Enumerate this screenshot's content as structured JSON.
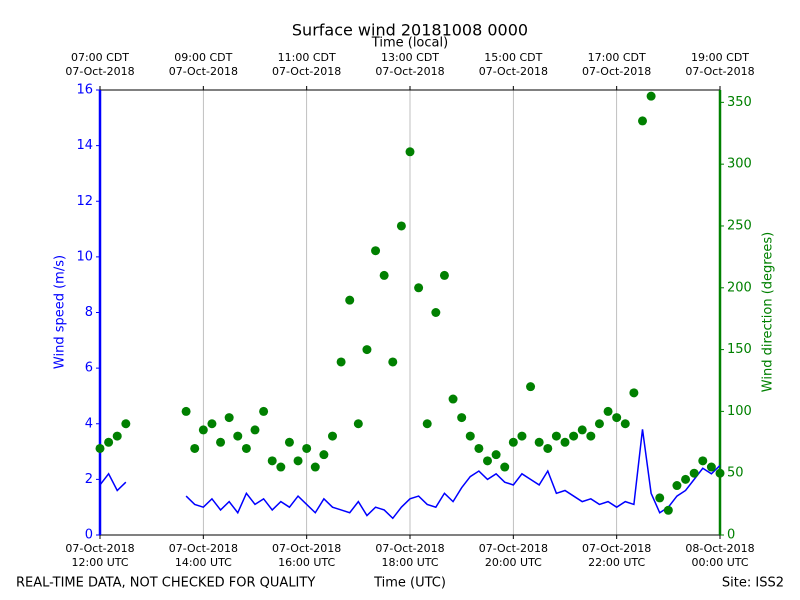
{
  "chart_data": {
    "type": "line_scatter",
    "title": "Surface wind 20181008 0000",
    "x_label": "Time (UTC)",
    "top_x_label": "Time (local)",
    "y_label": "Wind speed (m/s)",
    "y2_label": "Wind direction (degrees)",
    "footer_left": "REAL-TIME DATA, NOT CHECKED FOR QUALITY",
    "footer_right": "Site: ISS2",
    "xlim": [
      "2018-10-07T12:00",
      "2018-10-08T00:00"
    ],
    "xticks": [
      {
        "value": "2018-10-07T12:00",
        "label": "07-Oct-2018\n12:00 UTC"
      },
      {
        "value": "2018-10-07T14:00",
        "label": "07-Oct-2018\n14:00 UTC"
      },
      {
        "value": "2018-10-07T16:00",
        "label": "07-Oct-2018\n16:00 UTC"
      },
      {
        "value": "2018-10-07T18:00",
        "label": "07-Oct-2018\n18:00 UTC"
      },
      {
        "value": "2018-10-07T20:00",
        "label": "07-Oct-2018\n20:00 UTC"
      },
      {
        "value": "2018-10-07T22:00",
        "label": "07-Oct-2018\n22:00 UTC"
      },
      {
        "value": "2018-10-08T00:00",
        "label": "08-Oct-2018\n00:00 UTC"
      }
    ],
    "top_xticks": [
      {
        "value": "2018-10-07T12:00",
        "label": "07:00 CDT\n07-Oct-2018"
      },
      {
        "value": "2018-10-07T14:00",
        "label": "09:00 CDT\n07-Oct-2018"
      },
      {
        "value": "2018-10-07T16:00",
        "label": "11:00 CDT\n07-Oct-2018"
      },
      {
        "value": "2018-10-07T18:00",
        "label": "13:00 CDT\n07-Oct-2018"
      },
      {
        "value": "2018-10-07T20:00",
        "label": "15:00 CDT\n07-Oct-2018"
      },
      {
        "value": "2018-10-07T22:00",
        "label": "17:00 CDT\n07-Oct-2018"
      },
      {
        "value": "2018-10-08T00:00",
        "label": "19:00 CDT\n07-Oct-2018"
      }
    ],
    "ylim": [
      0,
      16
    ],
    "yticks": [
      0,
      2,
      4,
      6,
      8,
      10,
      12,
      14,
      16
    ],
    "y2lim": [
      0,
      360
    ],
    "y2ticks": [
      0,
      50,
      100,
      150,
      200,
      250,
      300,
      350
    ],
    "grid": "x",
    "x": [
      "2018-10-07T12:00",
      "2018-10-07T12:10",
      "2018-10-07T12:20",
      "2018-10-07T12:30",
      "2018-10-07T12:40",
      "2018-10-07T12:50",
      "2018-10-07T13:00",
      "2018-10-07T13:10",
      "2018-10-07T13:20",
      "2018-10-07T13:30",
      "2018-10-07T13:40",
      "2018-10-07T13:50",
      "2018-10-07T14:00",
      "2018-10-07T14:10",
      "2018-10-07T14:20",
      "2018-10-07T14:30",
      "2018-10-07T14:40",
      "2018-10-07T14:50",
      "2018-10-07T15:00",
      "2018-10-07T15:10",
      "2018-10-07T15:20",
      "2018-10-07T15:30",
      "2018-10-07T15:40",
      "2018-10-07T15:50",
      "2018-10-07T16:00",
      "2018-10-07T16:10",
      "2018-10-07T16:20",
      "2018-10-07T16:30",
      "2018-10-07T16:40",
      "2018-10-07T16:50",
      "2018-10-07T17:00",
      "2018-10-07T17:10",
      "2018-10-07T17:20",
      "2018-10-07T17:30",
      "2018-10-07T17:40",
      "2018-10-07T17:50",
      "2018-10-07T18:00",
      "2018-10-07T18:10",
      "2018-10-07T18:20",
      "2018-10-07T18:30",
      "2018-10-07T18:40",
      "2018-10-07T18:50",
      "2018-10-07T19:00",
      "2018-10-07T19:10",
      "2018-10-07T19:20",
      "2018-10-07T19:30",
      "2018-10-07T19:40",
      "2018-10-07T19:50",
      "2018-10-07T20:00",
      "2018-10-07T20:10",
      "2018-10-07T20:20",
      "2018-10-07T20:30",
      "2018-10-07T20:40",
      "2018-10-07T20:50",
      "2018-10-07T21:00",
      "2018-10-07T21:10",
      "2018-10-07T21:20",
      "2018-10-07T21:30",
      "2018-10-07T21:40",
      "2018-10-07T21:50",
      "2018-10-07T22:00",
      "2018-10-07T22:10",
      "2018-10-07T22:20",
      "2018-10-07T22:30",
      "2018-10-07T22:40",
      "2018-10-07T22:50",
      "2018-10-07T23:00",
      "2018-10-07T23:10",
      "2018-10-07T23:20",
      "2018-10-07T23:30",
      "2018-10-07T23:40",
      "2018-10-07T23:50",
      "2018-10-08T00:00"
    ],
    "series": [
      {
        "name": "Wind speed",
        "color": "#0000ff",
        "kind": "line",
        "values": [
          1.8,
          2.2,
          1.6,
          1.9,
          null,
          null,
          null,
          null,
          null,
          null,
          1.4,
          1.1,
          1.0,
          1.3,
          0.9,
          1.2,
          0.8,
          1.5,
          1.1,
          1.3,
          0.9,
          1.2,
          1.0,
          1.4,
          1.1,
          0.8,
          1.3,
          1.0,
          0.9,
          0.8,
          1.2,
          0.7,
          1.0,
          0.9,
          0.6,
          1.0,
          1.3,
          1.4,
          1.1,
          1.0,
          1.5,
          1.2,
          1.7,
          2.1,
          2.3,
          2.0,
          2.2,
          1.9,
          1.8,
          2.2,
          2.0,
          1.8,
          2.3,
          1.5,
          1.6,
          1.4,
          1.2,
          1.3,
          1.1,
          1.2,
          1.0,
          1.2,
          1.1,
          3.8,
          1.5,
          0.8,
          1.0,
          1.4,
          1.6,
          2.0,
          2.4,
          2.2,
          2.5
        ]
      },
      {
        "name": "Wind direction",
        "color": "#008000",
        "kind": "scatter",
        "axis": "y2",
        "values": [
          70,
          75,
          80,
          90,
          null,
          null,
          null,
          null,
          null,
          null,
          100,
          70,
          85,
          90,
          75,
          95,
          80,
          70,
          85,
          100,
          60,
          55,
          75,
          60,
          70,
          55,
          65,
          80,
          140,
          190,
          90,
          150,
          230,
          210,
          140,
          250,
          310,
          200,
          90,
          180,
          210,
          110,
          95,
          80,
          70,
          60,
          65,
          55,
          75,
          80,
          120,
          75,
          70,
          80,
          75,
          80,
          85,
          80,
          90,
          100,
          95,
          90,
          115,
          335,
          355,
          30,
          20,
          40,
          45,
          50,
          60,
          55,
          50
        ]
      }
    ]
  }
}
